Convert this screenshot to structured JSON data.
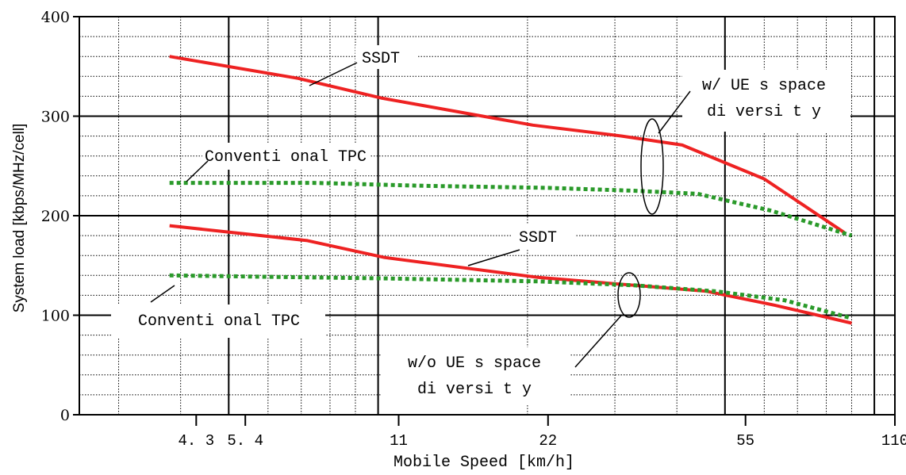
{
  "chart_data": {
    "type": "line",
    "xlabel": "Mobile Speed [km/h]",
    "ylabel": "System load [kbps/MHz/cell]",
    "xscale": "log",
    "xlim": [
      2.5,
      110
    ],
    "ylim": [
      0,
      400
    ],
    "yticks": [
      0,
      100,
      200,
      300,
      400
    ],
    "xticks": [
      4.3,
      5.4,
      11,
      22,
      55,
      110
    ],
    "xtick_labels": [
      "4. 3",
      "5. 4",
      "11",
      "22",
      "55",
      "110"
    ],
    "grid": true,
    "series": [
      {
        "color": "#ee2222",
        "style": "solid",
        "points": [
          [
            3.8,
            360
          ],
          [
            6.9,
            338
          ],
          [
            10.2,
            318
          ],
          [
            20.5,
            291
          ],
          [
            31,
            280
          ],
          [
            41,
            271
          ],
          [
            60,
            237
          ],
          [
            87,
            183
          ]
        ]
      },
      {
        "color": "#2a9a2a",
        "style": "dotted",
        "points": [
          [
            3.8,
            233
          ],
          [
            7.4,
            233
          ],
          [
            12.5,
            230
          ],
          [
            22,
            228
          ],
          [
            33,
            225
          ],
          [
            44,
            222
          ],
          [
            62,
            205
          ],
          [
            90,
            180
          ]
        ]
      },
      {
        "color": "#ee2222",
        "style": "solid",
        "points": [
          [
            3.8,
            190
          ],
          [
            7.2,
            175
          ],
          [
            10.3,
            158
          ],
          [
            21,
            138
          ],
          [
            33,
            130
          ],
          [
            46,
            124
          ],
          [
            63,
            110
          ],
          [
            90,
            92
          ]
        ]
      },
      {
        "color": "#2a9a2a",
        "style": "dotted",
        "points": [
          [
            3.8,
            140
          ],
          [
            10.3,
            137
          ],
          [
            21,
            134
          ],
          [
            33,
            130
          ],
          [
            48,
            124
          ],
          [
            66,
            115
          ],
          [
            90,
            97
          ]
        ]
      }
    ],
    "annotations": [
      {
        "id": "ssdt_top",
        "text": "SSDT"
      },
      {
        "id": "ue_with_1",
        "text": "w/ UE s space"
      },
      {
        "id": "ue_with_2",
        "text": "di versi t y"
      },
      {
        "id": "tpc_top",
        "text": "Conventi onal TPC"
      },
      {
        "id": "ssdt_bottom",
        "text": "SSDT"
      },
      {
        "id": "tpc_bottom",
        "text": "Conventi onal TPC"
      },
      {
        "id": "ue_without_1",
        "text": "w/o UE s space"
      },
      {
        "id": "ue_without_2",
        "text": "di versi t y"
      }
    ]
  }
}
